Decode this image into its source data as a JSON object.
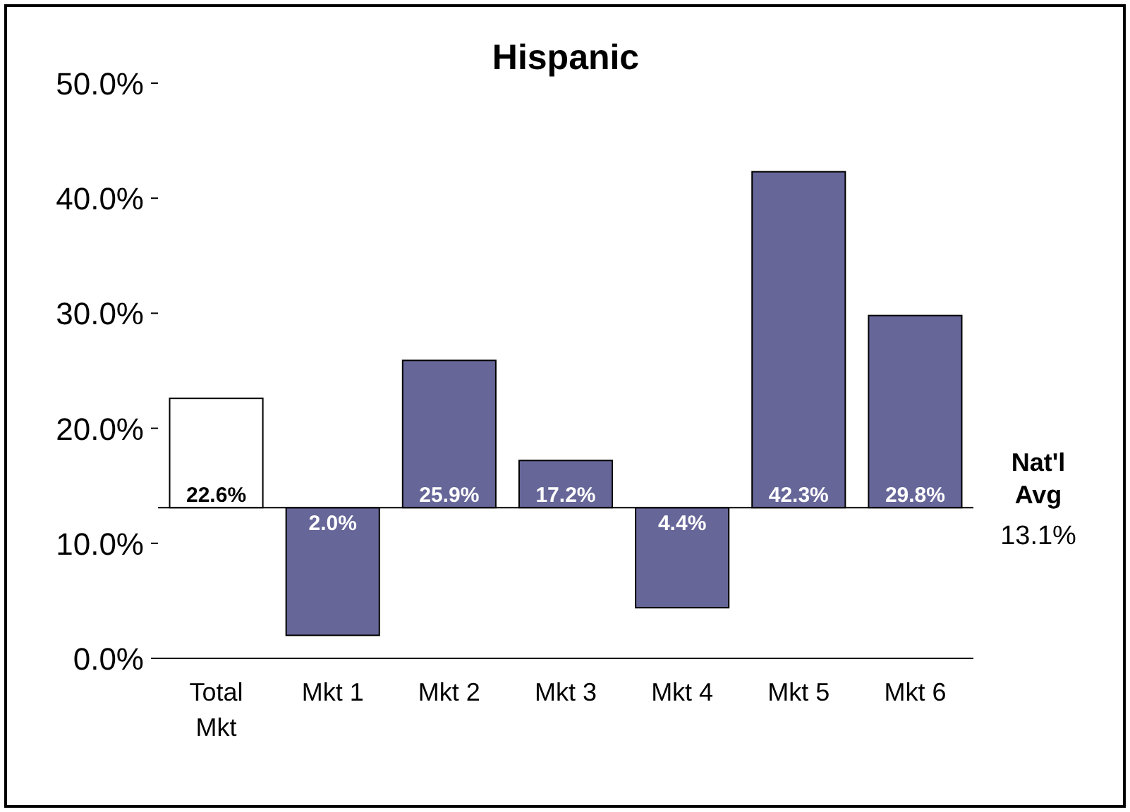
{
  "chart_data": {
    "type": "bar",
    "title": "Hispanic",
    "categories": [
      "Total Mkt",
      "Mkt 1",
      "Mkt 2",
      "Mkt 3",
      "Mkt 4",
      "Mkt 5",
      "Mkt 6"
    ],
    "base": [
      13.1,
      13.1,
      13.1,
      13.1,
      13.1,
      13.1,
      13.1
    ],
    "values": [
      9.5,
      -11.1,
      12.8,
      4.1,
      -8.7,
      29.2,
      16.7
    ],
    "value_labels": [
      "22.6%",
      "2.0%",
      "25.9%",
      "17.2%",
      "4.4%",
      "42.3%",
      "29.8%"
    ],
    "colors": [
      "#ffffff",
      "#666699",
      "#666699",
      "#666699",
      "#666699",
      "#666699",
      "#666699"
    ],
    "ylim": [
      0,
      50
    ],
    "yticks": [
      {
        "value": 0,
        "label": "0.0%"
      },
      {
        "value": 10,
        "label": "10.0%"
      },
      {
        "value": 20,
        "label": "20.0%"
      },
      {
        "value": 30,
        "label": "30.0%"
      },
      {
        "value": 40,
        "label": "40.0%"
      },
      {
        "value": 50,
        "label": "50.0%"
      }
    ],
    "ref_lines": [
      {
        "axis": "y",
        "value": 13.1,
        "label": "Nat'l Avg",
        "color": "#000000"
      }
    ],
    "annotations": [
      "13.1%"
    ],
    "grid": false
  }
}
